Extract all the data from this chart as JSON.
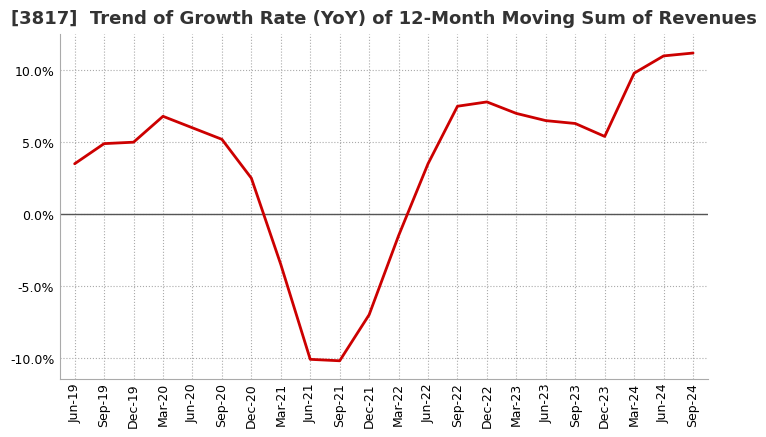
{
  "title": "[3817]  Trend of Growth Rate (YoY) of 12-Month Moving Sum of Revenues",
  "x_labels": [
    "Jun-19",
    "Sep-19",
    "Dec-19",
    "Mar-20",
    "Jun-20",
    "Sep-20",
    "Dec-20",
    "Mar-21",
    "Jun-21",
    "Sep-21",
    "Dec-21",
    "Mar-22",
    "Jun-22",
    "Sep-22",
    "Dec-22",
    "Mar-23",
    "Jun-23",
    "Sep-23",
    "Dec-23",
    "Mar-24",
    "Jun-24",
    "Sep-24"
  ],
  "y_values": [
    3.5,
    4.9,
    5.0,
    6.8,
    6.0,
    5.2,
    2.5,
    -3.5,
    -10.1,
    -10.2,
    -7.0,
    -1.5,
    3.5,
    7.5,
    7.8,
    7.0,
    6.5,
    6.3,
    5.4,
    9.8,
    11.0,
    11.2
  ],
  "line_color": "#cc0000",
  "line_width": 2.0,
  "ylim": [
    -11.5,
    12.5
  ],
  "yticks": [
    -10.0,
    -5.0,
    0.0,
    5.0,
    10.0
  ],
  "background_color": "#ffffff",
  "plot_bg_color": "#ffffff",
  "grid_color": "#aaaaaa",
  "title_fontsize": 13,
  "tick_fontsize": 9,
  "zero_line_color": "#555555"
}
